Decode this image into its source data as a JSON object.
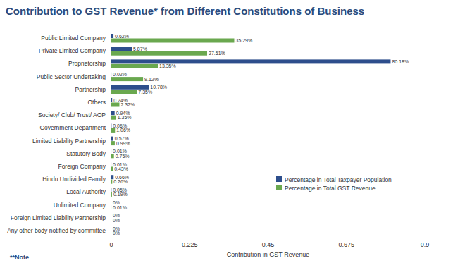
{
  "chart_data": {
    "type": "bar",
    "orientation": "horizontal",
    "title": "Contribution to GST Revenue* from Different Constitutions of Business",
    "x_label": "Contribution in GST Revenue",
    "annotations": [
      "**Note"
    ],
    "categories": [
      "Public Limited Company",
      "Private Limited Company",
      "Proprietorship",
      "Public Sector Undertaking",
      "Partnership",
      "Others",
      "Society/ Club/ Trust/ AOP",
      "Government Department",
      "Limited Liability Partnership",
      "Statutory Body",
      "Foreign Company",
      "Hindu Undivided Family",
      "Local Authority",
      "Unlimited Company",
      "Foreign Limited Liability Partnership",
      "Any other body notified by committee"
    ],
    "series": [
      {
        "name": "Percentage in Total Taxpayer Population",
        "color": "#2d4e8c",
        "values": [
          0.0062,
          0.0587,
          0.8018,
          0.0002,
          0.1078,
          0.0024,
          0.0094,
          0.0006,
          0.0057,
          0.0001,
          0.0001,
          0.0066,
          0.0005,
          0,
          0,
          0
        ],
        "value_labels": [
          "0.62%",
          "5.87%",
          "80.18%",
          "0.02%",
          "10.78%",
          "0.24%",
          "0.94%",
          "0.06%",
          "0.57%",
          "0.01%",
          "0.01%",
          "0.66%",
          "0.05%",
          "0%",
          "0%",
          "0%"
        ]
      },
      {
        "name": "Percentage in Total GST Revenue",
        "color": "#6aa84f",
        "values": [
          0.3529,
          0.2751,
          0.1335,
          0.0912,
          0.0735,
          0.0232,
          0.0135,
          0.0106,
          0.0099,
          0.0075,
          0.0043,
          0.0026,
          0.0019,
          0.0001,
          0,
          0
        ],
        "value_labels": [
          "35.29%",
          "27.51%",
          "13.35%",
          "9.12%",
          "7.35%",
          "2.32%",
          "1.35%",
          "1.06%",
          "0.99%",
          "0.75%",
          "0.43%",
          "0.26%",
          "0.19%",
          "0.01%",
          "0%",
          "0%"
        ]
      }
    ],
    "xlim": [
      0,
      0.9
    ],
    "xticks": [
      0,
      0.225,
      0.45,
      0.675,
      0.9
    ],
    "grid": false,
    "legend": "right",
    "data_labels": true
  }
}
